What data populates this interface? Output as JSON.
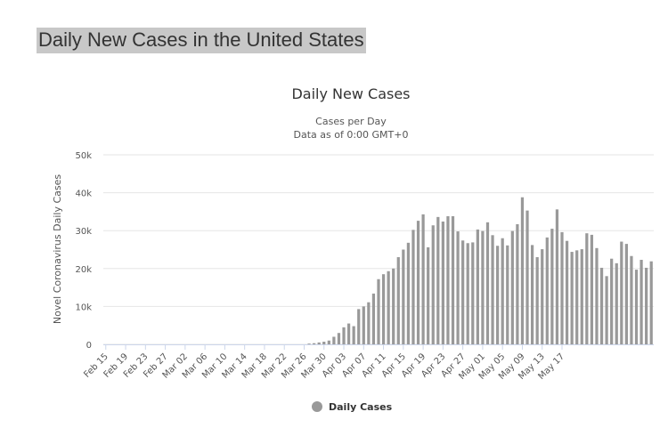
{
  "page": {
    "heading": "Daily New Cases in the United States"
  },
  "colors": {
    "bar": "#999999",
    "grid": "#e6e6e6",
    "axis": "#ccd6eb"
  },
  "chart_data": {
    "type": "bar",
    "title": "Daily New Cases",
    "subtitle_lines": [
      "Cases per Day",
      "Data as of 0:00 GMT+0"
    ],
    "xlabel": "",
    "ylabel": "Novel Coronavirus Daily Cases",
    "ylim": [
      0,
      50000
    ],
    "y_ticks": [
      0,
      10000,
      20000,
      30000,
      40000,
      50000
    ],
    "y_tick_labels": [
      "0",
      "10k",
      "20k",
      "30k",
      "40k",
      "50k"
    ],
    "x_tick_labels": [
      "Feb 15",
      "Feb 19",
      "Feb 23",
      "Feb 27",
      "Mar 02",
      "Mar 06",
      "Mar 10",
      "Mar 14",
      "Mar 18",
      "Mar 22",
      "Mar 26",
      "Mar 30",
      "Apr 03",
      "Apr 07",
      "Apr 11",
      "Apr 15",
      "Apr 19",
      "Apr 23",
      "Apr 27",
      "May 01",
      "May 05",
      "May 09",
      "May 13",
      "May 17"
    ],
    "tick_every": 4,
    "legend": "Daily Cases",
    "legend_position": "bottom-center",
    "series": [
      {
        "name": "Daily Cases",
        "values": [
          0,
          0,
          0,
          0,
          0,
          0,
          0,
          0,
          0,
          0,
          0,
          0,
          0,
          0,
          0,
          0,
          0,
          0,
          0,
          0,
          0,
          0,
          0,
          0,
          0,
          0,
          0,
          0,
          0,
          0,
          0,
          0,
          0,
          0,
          0,
          0,
          0,
          0,
          0,
          0,
          0,
          200,
          300,
          500,
          700,
          1000,
          2000,
          3000,
          4500,
          5500,
          4800,
          9300,
          10000,
          11100,
          13400,
          17200,
          18500,
          19300,
          20000,
          23000,
          25000,
          26800,
          30200,
          32600,
          34300,
          25600,
          31400,
          33600,
          32400,
          33800,
          33800,
          29800,
          27400,
          26700,
          26900,
          30300,
          29900,
          32200,
          28800,
          26000,
          28000,
          26100,
          29900,
          31700,
          38800,
          35300,
          26200,
          23000,
          25100,
          28200,
          30500,
          35600,
          29600,
          27300,
          24400,
          24800,
          25100,
          29300,
          28900,
          25400,
          20200,
          18000,
          22600,
          21400,
          27100,
          26500,
          23300,
          19700,
          22300,
          20200,
          21900
        ]
      }
    ]
  }
}
